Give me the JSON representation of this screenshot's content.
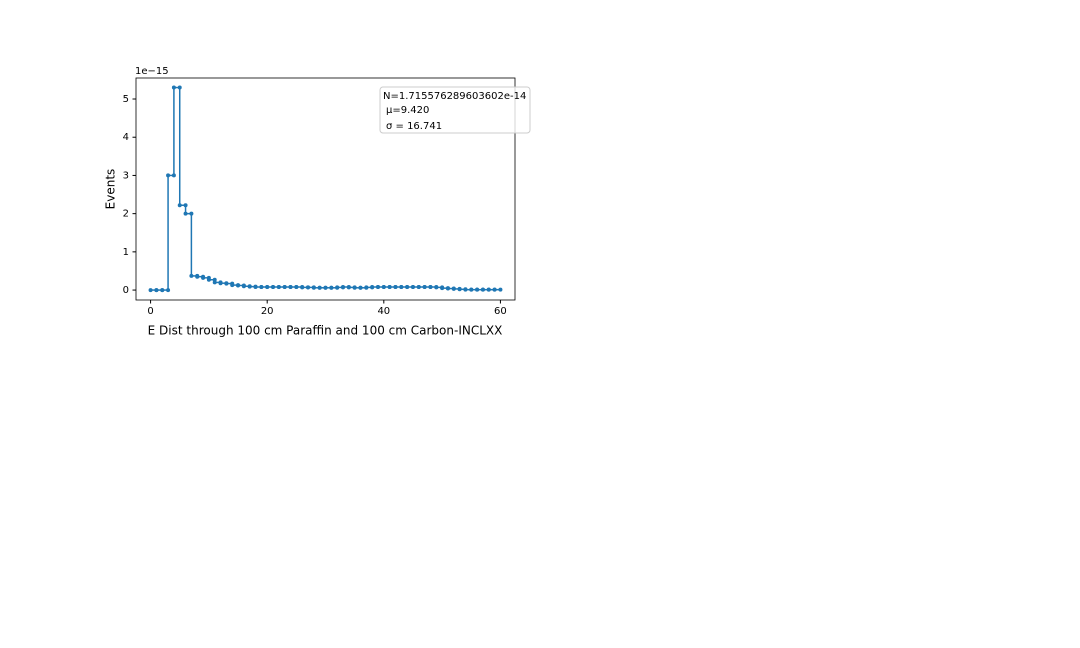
{
  "chart_data": {
    "type": "histogram",
    "x_label": "E Dist through 100 cm Paraffin and 100 cm Carbon-INCLXX",
    "y_label": "Events",
    "y_offset_label": "1e−15",
    "stats": [
      "N=1.715576289603602e-14",
      "μ=9.420",
      "σ = 16.741"
    ],
    "color": "#1f77b4",
    "bins": [
      0,
      1,
      2,
      3,
      4,
      5,
      6,
      7,
      8,
      9,
      10,
      11,
      12,
      13,
      14,
      15,
      16,
      17,
      18,
      19,
      20,
      21,
      22,
      23,
      24,
      25,
      26,
      27,
      28,
      29,
      30,
      31,
      32,
      33,
      34,
      35,
      36,
      37,
      38,
      39,
      40,
      41,
      42,
      43,
      44,
      45,
      46,
      47,
      48,
      49,
      50,
      51,
      52,
      53,
      54,
      55,
      56,
      57,
      58,
      59,
      60
    ],
    "values": [
      0,
      0,
      0,
      3.0,
      5.3,
      2.22,
      2.0,
      0.37,
      0.35,
      0.32,
      0.27,
      0.2,
      0.18,
      0.17,
      0.13,
      0.12,
      0.1,
      0.09,
      0.08,
      0.08,
      0.08,
      0.08,
      0.08,
      0.08,
      0.08,
      0.08,
      0.07,
      0.07,
      0.06,
      0.06,
      0.06,
      0.06,
      0.07,
      0.08,
      0.07,
      0.06,
      0.06,
      0.07,
      0.08,
      0.08,
      0.08,
      0.08,
      0.08,
      0.08,
      0.08,
      0.08,
      0.08,
      0.08,
      0.08,
      0.07,
      0.05,
      0.04,
      0.03,
      0.02,
      0.01,
      0.01,
      0.01,
      0.01,
      0.01,
      0.01
    ],
    "xlim": [
      -2.5,
      62.5
    ],
    "ylim": [
      -0.26,
      5.55
    ],
    "xticks": [
      0,
      20,
      40,
      60
    ],
    "yticks": [
      0,
      1,
      2,
      3,
      4,
      5
    ]
  }
}
